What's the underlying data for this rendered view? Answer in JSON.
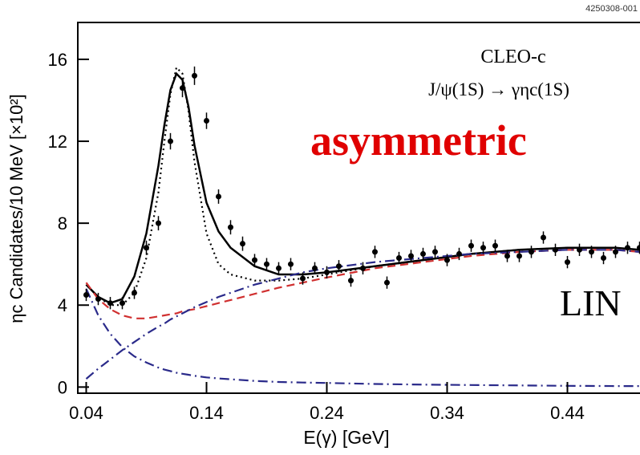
{
  "chart_data": {
    "type": "fit-plot",
    "id_label": "4250308-001",
    "experiment": "CLEO-c",
    "reaction": "J/ψ(1S) → γηc(1S)",
    "annotation": "asymmetric",
    "annotation2": "LIN",
    "x_label": "E(γ) [GeV]",
    "y_label": "ηc Candidates/10 MeV [×10²]",
    "xlim": [
      0.033,
      0.5
    ],
    "ylim": [
      -0.3,
      17.8
    ],
    "xticks": [
      0.04,
      0.14,
      0.24,
      0.34,
      0.44
    ],
    "yticks": [
      0,
      4,
      8,
      12,
      16
    ],
    "points": {
      "color": "#000000",
      "x": [
        0.04,
        0.05,
        0.06,
        0.07,
        0.08,
        0.09,
        0.1,
        0.11,
        0.12,
        0.13,
        0.14,
        0.15,
        0.16,
        0.17,
        0.18,
        0.19,
        0.2,
        0.21,
        0.22,
        0.23,
        0.24,
        0.25,
        0.26,
        0.27,
        0.28,
        0.29,
        0.3,
        0.31,
        0.32,
        0.33,
        0.34,
        0.35,
        0.36,
        0.37,
        0.38,
        0.39,
        0.4,
        0.41,
        0.42,
        0.43,
        0.44,
        0.45,
        0.46,
        0.47,
        0.48,
        0.49,
        0.5
      ],
      "values": [
        4.5,
        4.3,
        4.1,
        4.1,
        4.6,
        6.8,
        8.0,
        12.0,
        14.6,
        15.2,
        13.0,
        9.3,
        7.8,
        7.0,
        6.2,
        6.0,
        5.8,
        6.0,
        5.3,
        5.8,
        5.6,
        5.9,
        5.2,
        5.8,
        6.6,
        5.1,
        6.3,
        6.4,
        6.5,
        6.6,
        6.2,
        6.5,
        6.9,
        6.8,
        6.9,
        6.4,
        6.4,
        6.6,
        7.3,
        6.7,
        6.1,
        6.7,
        6.6,
        6.3,
        6.6,
        6.8,
        6.8
      ],
      "errors": [
        0.3,
        0.3,
        0.3,
        0.3,
        0.3,
        0.35,
        0.35,
        0.4,
        0.45,
        0.45,
        0.4,
        0.35,
        0.35,
        0.35,
        0.3,
        0.3,
        0.3,
        0.3,
        0.3,
        0.3,
        0.3,
        0.3,
        0.3,
        0.3,
        0.3,
        0.3,
        0.3,
        0.3,
        0.3,
        0.3,
        0.3,
        0.3,
        0.3,
        0.3,
        0.3,
        0.3,
        0.3,
        0.3,
        0.3,
        0.3,
        0.3,
        0.3,
        0.3,
        0.3,
        0.3,
        0.3,
        0.3
      ]
    },
    "curve_x": [
      0.04,
      0.05,
      0.06,
      0.07,
      0.08,
      0.09,
      0.1,
      0.105,
      0.11,
      0.115,
      0.12,
      0.125,
      0.13,
      0.14,
      0.15,
      0.16,
      0.18,
      0.2,
      0.22,
      0.24,
      0.28,
      0.32,
      0.36,
      0.4,
      0.44,
      0.48,
      0.5
    ],
    "curves": [
      {
        "style": "solid",
        "color": "#000000",
        "values": [
          5.0,
          4.4,
          4.1,
          4.3,
          5.4,
          7.5,
          10.8,
          12.8,
          14.5,
          15.3,
          15.0,
          13.7,
          11.8,
          9.0,
          7.6,
          6.8,
          5.9,
          5.5,
          5.5,
          5.6,
          5.9,
          6.2,
          6.5,
          6.7,
          6.8,
          6.8,
          6.7
        ]
      },
      {
        "style": "dotted",
        "color": "#000000",
        "values": [
          5.0,
          4.4,
          4.0,
          4.0,
          4.6,
          6.3,
          9.5,
          12.0,
          14.3,
          15.6,
          15.3,
          13.5,
          11.0,
          7.5,
          6.0,
          5.5,
          5.2,
          5.2,
          5.3,
          5.5,
          5.9,
          6.2,
          6.5,
          6.7,
          6.8,
          6.8,
          6.7
        ]
      },
      {
        "style": "dashed",
        "color": "#d03030",
        "values": [
          5.1,
          4.3,
          3.8,
          3.5,
          3.35,
          3.35,
          3.45,
          3.5,
          3.55,
          3.6,
          3.7,
          3.75,
          3.8,
          3.95,
          4.1,
          4.25,
          4.55,
          4.85,
          5.1,
          5.35,
          5.8,
          6.1,
          6.4,
          6.6,
          6.7,
          6.7,
          6.6
        ]
      },
      {
        "style": "dashdot",
        "color": "#2a2a8a",
        "values": [
          0.4,
          0.9,
          1.35,
          1.8,
          2.2,
          2.6,
          2.95,
          3.1,
          3.3,
          3.45,
          3.6,
          3.75,
          3.9,
          4.15,
          4.4,
          4.6,
          5.0,
          5.3,
          5.6,
          5.8,
          6.1,
          6.3,
          6.5,
          6.6,
          6.7,
          6.7,
          6.6
        ]
      },
      {
        "style": "dashdot",
        "color": "#2a2a8a",
        "values": [
          4.8,
          3.5,
          2.6,
          1.95,
          1.5,
          1.2,
          0.95,
          0.85,
          0.78,
          0.7,
          0.65,
          0.6,
          0.55,
          0.47,
          0.42,
          0.38,
          0.3,
          0.25,
          0.22,
          0.2,
          0.15,
          0.12,
          0.1,
          0.08,
          0.06,
          0.05,
          0.05
        ]
      }
    ]
  }
}
